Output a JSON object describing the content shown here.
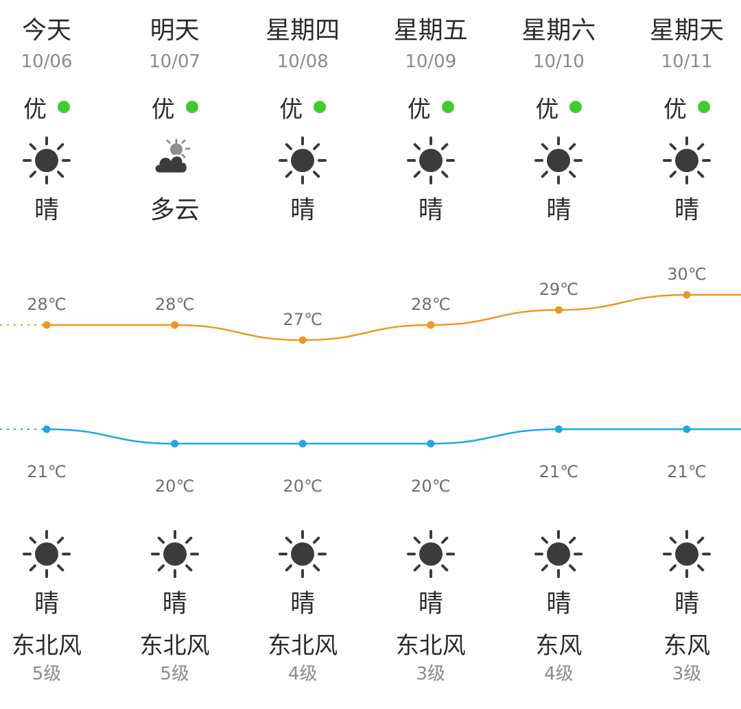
{
  "accent": {
    "high": "#f0961e",
    "low": "#1ea7e1",
    "aqi_good": "#3fcc2d",
    "icon": "#3b3b3b"
  },
  "days": [
    {
      "name": "今天",
      "date": "10/06",
      "aqi": "优",
      "day_icon": "sun-icon",
      "day_cond": "晴",
      "night_icon": "sun-icon",
      "night_cond": "晴",
      "wind_dir": "东北风",
      "wind_level": "5级"
    },
    {
      "name": "明天",
      "date": "10/07",
      "aqi": "优",
      "day_icon": "partly-cloudy-icon",
      "day_cond": "多云",
      "night_icon": "sun-icon",
      "night_cond": "晴",
      "wind_dir": "东北风",
      "wind_level": "5级"
    },
    {
      "name": "星期四",
      "date": "10/08",
      "aqi": "优",
      "day_icon": "sun-icon",
      "day_cond": "晴",
      "night_icon": "sun-icon",
      "night_cond": "晴",
      "wind_dir": "东北风",
      "wind_level": "4级"
    },
    {
      "name": "星期五",
      "date": "10/09",
      "aqi": "优",
      "day_icon": "sun-icon",
      "day_cond": "晴",
      "night_icon": "sun-icon",
      "night_cond": "晴",
      "wind_dir": "东北风",
      "wind_level": "3级"
    },
    {
      "name": "星期六",
      "date": "10/10",
      "aqi": "优",
      "day_icon": "sun-icon",
      "day_cond": "晴",
      "night_icon": "sun-icon",
      "night_cond": "晴",
      "wind_dir": "东风",
      "wind_level": "4级"
    },
    {
      "name": "星期天",
      "date": "10/11",
      "aqi": "优",
      "day_icon": "sun-icon",
      "day_cond": "晴",
      "night_icon": "sun-icon",
      "night_cond": "晴",
      "wind_dir": "东风",
      "wind_level": "3级"
    }
  ],
  "chart_data": {
    "type": "line",
    "categories": [
      "10/06",
      "10/07",
      "10/08",
      "10/09",
      "10/10",
      "10/11"
    ],
    "unit": "℃",
    "series": [
      {
        "name": "",
        "values": [
          28,
          28,
          27,
          28,
          29,
          30
        ],
        "labels": [
          "28℃",
          "28℃",
          "27℃",
          "28℃",
          "29℃",
          "30℃"
        ]
      },
      {
        "name": "",
        "values": [
          21,
          20,
          20,
          20,
          21,
          21
        ],
        "labels": [
          "21℃",
          "20℃",
          "20℃",
          "20℃",
          "21℃",
          "21℃"
        ]
      }
    ],
    "grid": false,
    "legend": "none"
  }
}
